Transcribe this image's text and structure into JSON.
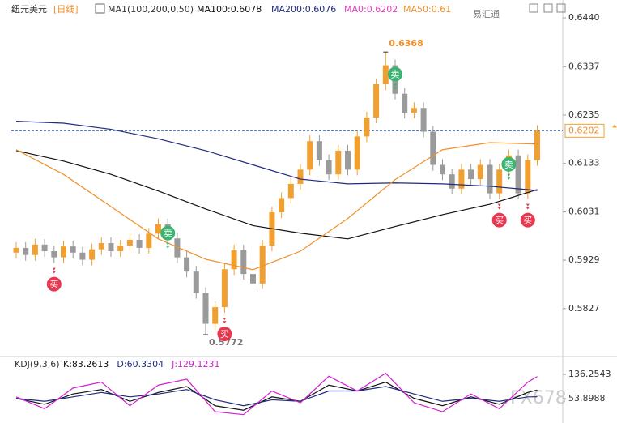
{
  "chart_data": [
    {
      "type": "candlestick",
      "title": "纽元美元",
      "period": "[日线]",
      "indicator": "MA1(100,200,0,50)",
      "brand": "易汇通",
      "up_color": "#f0a030",
      "down_color": "#9a9a9a",
      "ylim": [
        0.5743,
        0.6464
      ],
      "yticks": [
        {
          "value": 0.644,
          "label": "0.6440"
        },
        0.6337,
        0.6235,
        0.6133,
        0.6031,
        0.5929,
        0.5827
      ],
      "candles": {
        "open": [
          0.5945,
          0.5955,
          0.594,
          0.5962,
          0.5948,
          0.5935,
          0.5958,
          0.5945,
          0.593,
          0.5952,
          0.5965,
          0.5948,
          0.596,
          0.5972,
          0.5955,
          0.5985,
          0.6005,
          0.5975,
          0.5935,
          0.5905,
          0.586,
          0.5795,
          0.583,
          0.591,
          0.595,
          0.59,
          0.588,
          0.596,
          0.603,
          0.606,
          0.609,
          0.612,
          0.618,
          0.614,
          0.611,
          0.616,
          0.612,
          0.619,
          0.623,
          0.63,
          0.634,
          0.628,
          0.624,
          0.625,
          0.62,
          0.613,
          0.611,
          0.608,
          0.612,
          0.61,
          0.613,
          0.607,
          0.612,
          0.615,
          0.607,
          0.614
        ],
        "high": [
          0.5967,
          0.5967,
          0.5974,
          0.5974,
          0.596,
          0.597,
          0.597,
          0.5957,
          0.5964,
          0.5977,
          0.5977,
          0.5972,
          0.5984,
          0.5984,
          0.5997,
          0.6017,
          0.6017,
          0.5987,
          0.5947,
          0.5917,
          0.5872,
          0.5842,
          0.5922,
          0.5962,
          0.5962,
          0.5912,
          0.5972,
          0.6042,
          0.6072,
          0.6102,
          0.6132,
          0.6192,
          0.6192,
          0.6152,
          0.6172,
          0.6172,
          0.6202,
          0.6242,
          0.6312,
          0.6368,
          0.6352,
          0.6292,
          0.6262,
          0.6262,
          0.6212,
          0.6142,
          0.6122,
          0.6132,
          0.6132,
          0.6142,
          0.6142,
          0.6132,
          0.6162,
          0.6162,
          0.6152,
          0.6214
        ],
        "low": [
          0.5933,
          0.5928,
          0.5928,
          0.5936,
          0.5923,
          0.5923,
          0.5933,
          0.5918,
          0.5918,
          0.594,
          0.5936,
          0.5936,
          0.5948,
          0.5943,
          0.5943,
          0.5973,
          0.5963,
          0.5923,
          0.5893,
          0.5848,
          0.5772,
          0.5783,
          0.5818,
          0.5898,
          0.5888,
          0.5868,
          0.5868,
          0.5948,
          0.6018,
          0.6048,
          0.6078,
          0.6108,
          0.6128,
          0.6098,
          0.6098,
          0.6108,
          0.6108,
          0.6178,
          0.6218,
          0.6288,
          0.6268,
          0.6228,
          0.6228,
          0.6188,
          0.6118,
          0.6098,
          0.6068,
          0.6068,
          0.6088,
          0.6088,
          0.6058,
          0.6058,
          0.6108,
          0.6058,
          0.6058,
          0.6128
        ],
        "close": [
          0.5955,
          0.594,
          0.5962,
          0.5948,
          0.5935,
          0.5958,
          0.5945,
          0.593,
          0.5952,
          0.5965,
          0.5948,
          0.596,
          0.5972,
          0.5955,
          0.5985,
          0.6005,
          0.5975,
          0.5935,
          0.5905,
          0.586,
          0.5795,
          0.583,
          0.591,
          0.595,
          0.59,
          0.588,
          0.596,
          0.603,
          0.606,
          0.609,
          0.612,
          0.618,
          0.614,
          0.611,
          0.616,
          0.612,
          0.619,
          0.623,
          0.63,
          0.634,
          0.628,
          0.624,
          0.625,
          0.62,
          0.613,
          0.611,
          0.608,
          0.612,
          0.61,
          0.613,
          0.607,
          0.612,
          0.615,
          0.607,
          0.614,
          0.6202
        ]
      },
      "series": [
        {
          "name": "MA100:0.6078",
          "color": "#111111",
          "x": [
            0,
            5,
            10,
            15,
            20,
            25,
            30,
            35,
            40,
            45,
            50,
            55
          ],
          "values": [
            0.616,
            0.6138,
            0.611,
            0.6075,
            0.6037,
            0.6002,
            0.5986,
            0.5974,
            0.6,
            0.6025,
            0.6047,
            0.6078
          ]
        },
        {
          "name": "MA200:0.6076",
          "color": "#1f2a80",
          "x": [
            0,
            5,
            10,
            15,
            20,
            25,
            30,
            35,
            40,
            45,
            50,
            55
          ],
          "values": [
            0.6222,
            0.6218,
            0.6205,
            0.6185,
            0.616,
            0.613,
            0.61,
            0.609,
            0.6092,
            0.609,
            0.6085,
            0.6076
          ]
        },
        {
          "name": "MA50:0.61",
          "color": "#f0902a",
          "x": [
            0,
            5,
            10,
            15,
            20,
            25,
            30,
            35,
            40,
            45,
            50,
            55
          ],
          "values": [
            0.6162,
            0.611,
            0.6042,
            0.5974,
            0.5931,
            0.5909,
            0.5948,
            0.6017,
            0.6099,
            0.6162,
            0.6177,
            0.6174
          ]
        }
      ],
      "price_line": {
        "label": "MA0:0.6202",
        "value": 0.6202,
        "color": "#e040c0"
      },
      "extremes": [
        {
          "candle": 39,
          "field": "high",
          "color": "#f0902a"
        },
        {
          "candle": 20,
          "field": "low",
          "color": "#777777"
        }
      ],
      "signals": [
        {
          "label": "买",
          "candle": 4
        },
        {
          "label": "卖",
          "candle": 16
        },
        {
          "label": "买",
          "candle": 22
        },
        {
          "label": "卖",
          "candle": 40
        },
        {
          "label": "买",
          "candle": 51
        },
        {
          "label": "卖",
          "candle": 52
        },
        {
          "label": "买",
          "candle": 54
        }
      ]
    },
    {
      "type": "line",
      "title": "KDJ(9,3,6)",
      "watermark": "FX678",
      "ylim": [
        -5,
        150
      ],
      "yticks": [
        136.2543,
        53.8988
      ],
      "series": [
        {
          "name": "K:83.2613",
          "color": "#111111",
          "x": [
            0,
            3,
            6,
            9,
            12,
            15,
            18,
            21,
            24,
            27,
            30,
            33,
            36,
            39,
            42,
            45,
            48,
            51,
            54,
            55
          ],
          "values": [
            55,
            35,
            70,
            85,
            45,
            75,
            95,
            30,
            15,
            60,
            45,
            100,
            80,
            110,
            55,
            30,
            60,
            35,
            75,
            83.2613
          ]
        },
        {
          "name": "D:60.3304",
          "color": "#1f2a80",
          "x": [
            0,
            3,
            6,
            9,
            12,
            15,
            18,
            21,
            24,
            27,
            30,
            33,
            36,
            39,
            42,
            45,
            48,
            51,
            54,
            55
          ],
          "values": [
            55,
            45,
            60,
            75,
            60,
            70,
            85,
            50,
            30,
            50,
            45,
            80,
            80,
            95,
            70,
            45,
            55,
            45,
            60,
            60.3304
          ]
        },
        {
          "name": "J:129.1231",
          "color": "#d020d0",
          "x": [
            0,
            3,
            6,
            9,
            12,
            15,
            18,
            21,
            24,
            27,
            30,
            33,
            36,
            39,
            42,
            45,
            48,
            51,
            54,
            55
          ],
          "values": [
            60,
            20,
            90,
            110,
            30,
            100,
            120,
            10,
            0,
            80,
            40,
            130,
            80,
            140,
            40,
            10,
            70,
            20,
            110,
            129.1231
          ]
        }
      ]
    }
  ]
}
